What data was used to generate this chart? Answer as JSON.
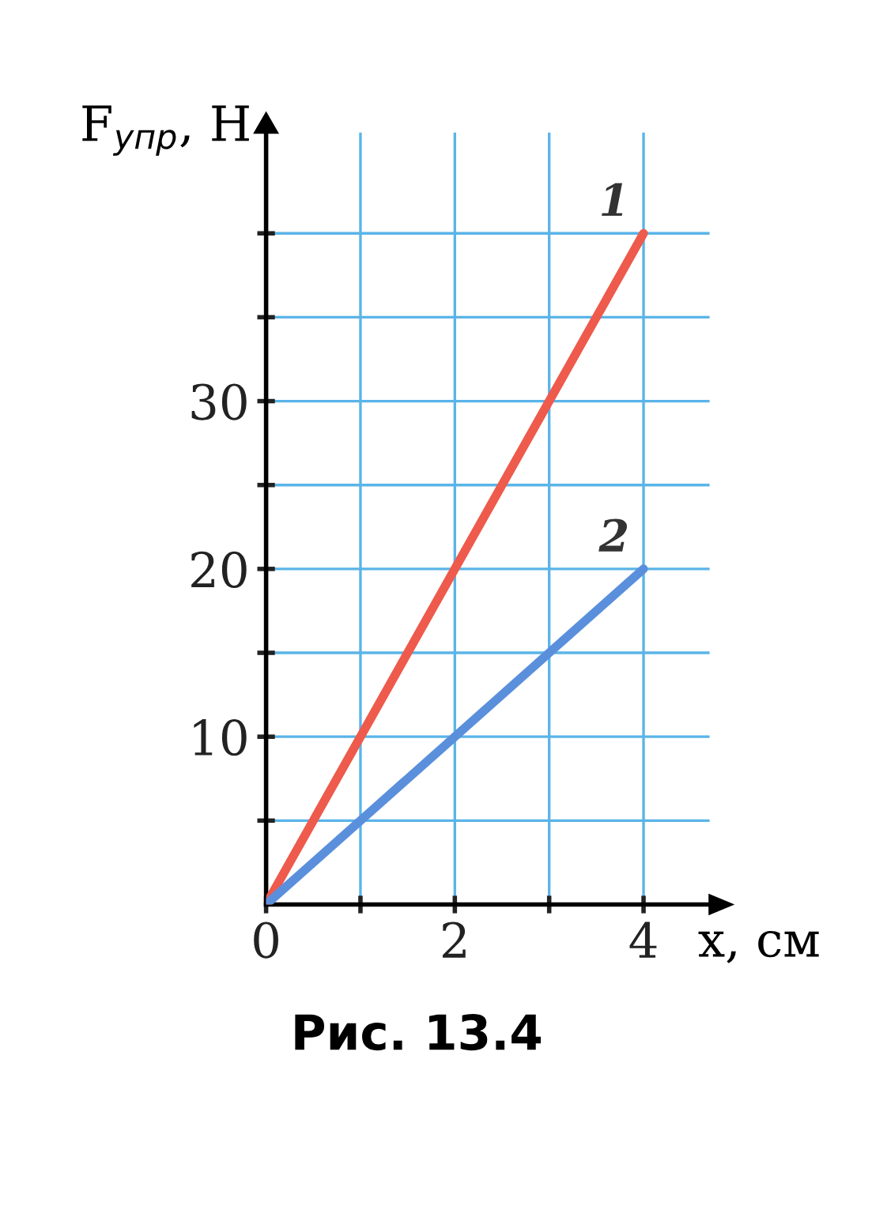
{
  "chart_data": {
    "type": "line",
    "xlabel": "x, см",
    "ylabel": "F$_{упр}$, Н",
    "annotations": [
      "Рис. 13.4"
    ],
    "x": [
      0,
      4
    ],
    "series": [
      {
        "name": "1",
        "color": "#ee5a4c",
        "values": [
          0,
          40
        ]
      },
      {
        "name": "2",
        "color": "#5a8fdc",
        "values": [
          0,
          20
        ]
      }
    ],
    "xlim": [
      0,
      4.7
    ],
    "ylim": [
      0,
      46
    ],
    "xticks": [
      0,
      {
        "value": 1,
        "label": null
      },
      2,
      {
        "value": 3,
        "label": null
      },
      4
    ],
    "yticks": [
      {
        "value": 5,
        "label": null
      },
      10,
      {
        "value": 15,
        "label": null
      },
      20,
      {
        "value": 25,
        "label": null
      },
      30,
      {
        "value": 35,
        "label": null
      },
      {
        "value": 40,
        "label": null
      }
    ],
    "grid": true,
    "marker": "none",
    "line_style": "solid"
  }
}
